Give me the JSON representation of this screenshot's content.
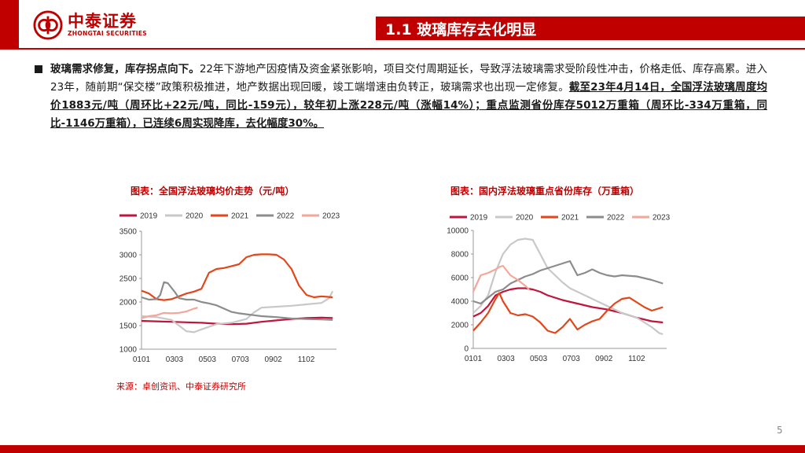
{
  "header": {
    "logo_cn": "中泰证券",
    "logo_en": "ZHONGTAI SECURITIES",
    "section_title": "1.1 玻璃库存去化明显"
  },
  "body": {
    "lead": "玻璃需求修复，库存拐点向下。",
    "text1": "22年下游地产因疫情及资金紧张影响，项目交付周期延长，导致浮法玻璃需求受阶段性冲击，价格走低、库存高累。进入23年，随前期“保交楼”政策积极推进，地产数据出现回暖，竣工端增速由负转正，玻璃需求也出现一定修复。",
    "highlight": "截至23年4月14日，全国浮法玻璃周度均价1883元/吨（周环比+22元/吨，同比-159元），较年初上涨228元/吨（涨幅14%）；重点监测省份库存5012万重箱（周环比-334万重箱，同比-1146万重箱），已连续6周实现降库，去化幅度30%。"
  },
  "chart1_title": "图表：全国浮法玻璃均价走势（元/吨）",
  "chart2_title": "图表：国内浮法玻璃重点省份库存（万重箱）",
  "source": "来源：卓创资讯、中泰证券研究所",
  "page_number": "5",
  "colors": {
    "brand": "#c00000",
    "s2019": "#c0143c",
    "s2020": "#c8c8c8",
    "s2021": "#e2461a",
    "s2022": "#8c8c8c",
    "s2023": "#f4a69a"
  },
  "chart_data": [
    {
      "type": "line",
      "title": "图表：全国浮法玻璃均价走势（元/吨）",
      "ylabel": "元/吨",
      "x_ticks": [
        "0101",
        "0303",
        "0503",
        "0703",
        "0902",
        "1102"
      ],
      "y_ticks": [
        "3500",
        "3000",
        "2500",
        "2000",
        "1500",
        "1000"
      ],
      "ylim": [
        1000,
        3500
      ],
      "xlim": [
        0,
        52
      ],
      "legend": [
        "2019",
        "2020",
        "2021",
        "2022",
        "2023"
      ],
      "series": [
        {
          "name": "2019",
          "color": "#c0143c",
          "x": [
            0,
            4,
            8,
            12,
            16,
            20,
            24,
            28,
            32,
            36,
            40,
            44,
            48,
            51
          ],
          "values": [
            1600,
            1590,
            1580,
            1570,
            1560,
            1540,
            1530,
            1540,
            1580,
            1610,
            1640,
            1660,
            1670,
            1660
          ]
        },
        {
          "name": "2020",
          "color": "#c8c8c8",
          "x": [
            0,
            4,
            8,
            10,
            12,
            14,
            16,
            20,
            24,
            28,
            30,
            32,
            36,
            40,
            44,
            48,
            50,
            51
          ],
          "values": [
            1700,
            1680,
            1620,
            1500,
            1380,
            1360,
            1420,
            1530,
            1560,
            1640,
            1780,
            1880,
            1900,
            1920,
            1950,
            1980,
            2080,
            2230
          ]
        },
        {
          "name": "2021",
          "color": "#e2461a",
          "x": [
            0,
            2,
            4,
            6,
            8,
            10,
            12,
            14,
            16,
            18,
            20,
            22,
            24,
            26,
            28,
            30,
            32,
            34,
            36,
            38,
            40,
            42,
            44,
            46,
            48,
            51
          ],
          "values": [
            2240,
            2180,
            2060,
            2040,
            2060,
            2120,
            2180,
            2220,
            2280,
            2620,
            2700,
            2720,
            2760,
            2800,
            2950,
            3000,
            3010,
            3010,
            3000,
            2900,
            2700,
            2350,
            2150,
            2100,
            2120,
            2100
          ]
        },
        {
          "name": "2022",
          "color": "#8c8c8c",
          "x": [
            0,
            2,
            4,
            5,
            6,
            7,
            8,
            9,
            10,
            12,
            14,
            16,
            18,
            20,
            22,
            24,
            26,
            28,
            30,
            32,
            34,
            36,
            40,
            44,
            48,
            51
          ],
          "values": [
            2100,
            2050,
            2060,
            2150,
            2420,
            2400,
            2300,
            2200,
            2080,
            2050,
            2050,
            2000,
            1970,
            1930,
            1860,
            1790,
            1760,
            1740,
            1720,
            1700,
            1690,
            1680,
            1650,
            1640,
            1630,
            1620
          ]
        },
        {
          "name": "2023",
          "color": "#f4a69a",
          "x": [
            0,
            2,
            4,
            6,
            8,
            10,
            12,
            14,
            15
          ],
          "values": [
            1660,
            1700,
            1720,
            1770,
            1760,
            1770,
            1800,
            1860,
            1880
          ]
        }
      ]
    },
    {
      "type": "line",
      "title": "图表：国内浮法玻璃重点省份库存（万重箱）",
      "ylabel": "万重箱",
      "x_ticks": [
        "0101",
        "0303",
        "0503",
        "0703",
        "0902",
        "1102"
      ],
      "y_ticks": [
        "10000",
        "8000",
        "6000",
        "4000",
        "2000",
        "0"
      ],
      "ylim": [
        0,
        10000
      ],
      "xlim": [
        0,
        52
      ],
      "legend": [
        "2019",
        "2020",
        "2021",
        "2022",
        "2023"
      ],
      "series": [
        {
          "name": "2019",
          "color": "#c0143c",
          "x": [
            0,
            2,
            4,
            6,
            8,
            10,
            12,
            14,
            16,
            18,
            20,
            24,
            28,
            32,
            36,
            40,
            44,
            48,
            51
          ],
          "values": [
            2700,
            3000,
            3600,
            4500,
            4800,
            5000,
            5100,
            5100,
            5000,
            4800,
            4500,
            4100,
            3800,
            3500,
            3300,
            3000,
            2600,
            2300,
            2200
          ]
        },
        {
          "name": "2020",
          "color": "#c8c8c8",
          "x": [
            0,
            2,
            4,
            6,
            8,
            10,
            12,
            14,
            16,
            18,
            20,
            22,
            24,
            26,
            28,
            32,
            36,
            40,
            44,
            48,
            50,
            51
          ],
          "values": [
            3000,
            3600,
            4500,
            6500,
            8000,
            8800,
            9200,
            9300,
            9200,
            8000,
            6800,
            6200,
            5600,
            5100,
            4800,
            4200,
            3600,
            3000,
            2600,
            1800,
            1300,
            1200
          ]
        },
        {
          "name": "2021",
          "color": "#e2461a",
          "x": [
            0,
            2,
            4,
            6,
            7,
            8,
            10,
            12,
            14,
            16,
            18,
            20,
            22,
            24,
            26,
            28,
            30,
            32,
            34,
            36,
            38,
            40,
            42,
            44,
            46,
            48,
            51
          ],
          "values": [
            1500,
            2200,
            3000,
            4200,
            4700,
            4000,
            3000,
            2800,
            2900,
            2700,
            2200,
            1500,
            1300,
            1800,
            2500,
            1600,
            2000,
            2300,
            2500,
            3200,
            3800,
            4200,
            4300,
            3900,
            3500,
            3200,
            3500
          ]
        },
        {
          "name": "2022",
          "color": "#8c8c8c",
          "x": [
            0,
            2,
            4,
            6,
            8,
            10,
            12,
            14,
            16,
            18,
            20,
            22,
            24,
            26,
            28,
            30,
            32,
            34,
            36,
            38,
            40,
            44,
            48,
            51
          ],
          "values": [
            4000,
            3800,
            4300,
            4800,
            5000,
            5500,
            5800,
            6100,
            6300,
            6600,
            6800,
            7000,
            7200,
            7400,
            6200,
            6400,
            6700,
            6400,
            6200,
            6100,
            6200,
            6100,
            5800,
            5500
          ]
        },
        {
          "name": "2023",
          "color": "#f4a69a",
          "x": [
            0,
            1,
            2,
            4,
            6,
            7,
            8,
            10,
            12,
            14,
            15
          ],
          "values": [
            4800,
            5500,
            6200,
            6400,
            6700,
            6900,
            7000,
            6200,
            5800,
            5300,
            5000
          ]
        }
      ]
    }
  ]
}
